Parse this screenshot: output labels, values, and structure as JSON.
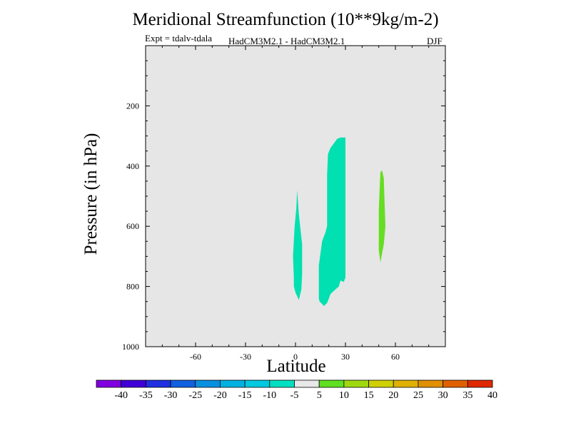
{
  "chart_data": {
    "type": "contour",
    "title": "Meridional Streamfunction (10**9kg/m-2)",
    "subtitle_left": "Expt = tdalv-tdala",
    "subtitle_center": "HadCM3M2.1 - HadCM3M2.1",
    "subtitle_right": "DJF",
    "xlabel": "Latitude",
    "ylabel": "Pressure (in hPa)",
    "xlim": [
      -90,
      90
    ],
    "ylim": [
      1000,
      0
    ],
    "x_ticks": [
      -60,
      -30,
      0,
      30,
      60
    ],
    "y_ticks": [
      200,
      400,
      600,
      800,
      1000
    ],
    "background_color": "#e6e6e6",
    "regions": [
      {
        "name": "region-neg-a",
        "level": "-10 to -5",
        "color": "#00e0b0",
        "points": [
          [
            -1,
            770
          ],
          [
            -1.5,
            700
          ],
          [
            -0.5,
            600
          ],
          [
            0.5,
            540
          ],
          [
            1,
            480
          ],
          [
            2,
            560
          ],
          [
            4,
            660
          ],
          [
            4,
            760
          ],
          [
            3.5,
            810
          ],
          [
            2,
            845
          ],
          [
            0,
            820
          ],
          [
            -1,
            800
          ]
        ]
      },
      {
        "name": "region-neg-b",
        "level": "-10 to -5",
        "color": "#00e0b0",
        "points": [
          [
            14,
            840
          ],
          [
            14,
            730
          ],
          [
            15,
            690
          ],
          [
            16,
            650
          ],
          [
            18,
            620
          ],
          [
            19,
            600
          ],
          [
            19,
            510
          ],
          [
            19,
            430
          ],
          [
            19.5,
            360
          ],
          [
            21,
            340
          ],
          [
            25,
            310
          ],
          [
            27,
            305
          ],
          [
            30,
            305
          ],
          [
            30,
            770
          ],
          [
            29,
            785
          ],
          [
            27,
            780
          ],
          [
            26,
            800
          ],
          [
            24,
            810
          ],
          [
            22,
            820
          ],
          [
            21,
            825
          ],
          [
            20,
            840
          ],
          [
            19,
            855
          ],
          [
            17,
            865
          ],
          [
            16,
            858
          ],
          [
            14.5,
            850
          ]
        ]
      },
      {
        "name": "region-pos",
        "level": "5 to 10",
        "color": "#66dd22",
        "points": [
          [
            50,
            630
          ],
          [
            50,
            550
          ],
          [
            50.5,
            480
          ],
          [
            51,
            420
          ],
          [
            52,
            415
          ],
          [
            53,
            440
          ],
          [
            53.5,
            520
          ],
          [
            54,
            600
          ],
          [
            53,
            660
          ],
          [
            52,
            690
          ],
          [
            51,
            720
          ],
          [
            50,
            680
          ]
        ]
      }
    ],
    "colorbar": {
      "levels": [
        "-40",
        "-35",
        "-30",
        "-25",
        "-20",
        "-15",
        "-10",
        "-5",
        "5",
        "10",
        "15",
        "20",
        "25",
        "30",
        "35",
        "40"
      ],
      "colors": [
        "#8000e0",
        "#4000d8",
        "#2030e0",
        "#1060e0",
        "#0890e0",
        "#00b0e0",
        "#00c8e0",
        "#00e0c0",
        "#e8e8e8",
        "#60e020",
        "#a0d810",
        "#d0d000",
        "#e0b000",
        "#e09000",
        "#e06000",
        "#e02800"
      ]
    }
  }
}
